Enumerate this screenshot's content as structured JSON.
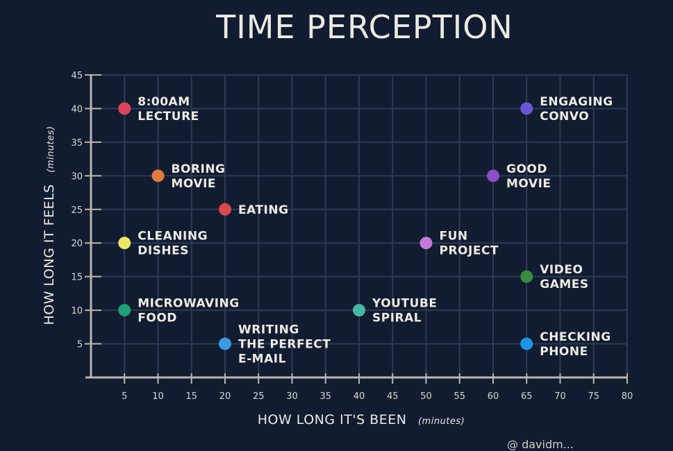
{
  "chart_data": {
    "type": "scatter",
    "title": "TIME PERCEPTION",
    "xlabel": "HOW LONG IT'S BEEN",
    "xunit": "(minutes)",
    "ylabel": "HOW LONG IT FEELS",
    "yunit": "(minutes)",
    "xlim": [
      0,
      80
    ],
    "ylim": [
      0,
      45
    ],
    "xticks": [
      5,
      10,
      15,
      20,
      25,
      30,
      35,
      40,
      45,
      50,
      55,
      60,
      65,
      70,
      75,
      80
    ],
    "yticks": [
      5,
      10,
      15,
      20,
      25,
      30,
      35,
      40,
      45
    ],
    "grid": true,
    "points": [
      {
        "label": [
          "8:00AM",
          "LECTURE"
        ],
        "x": 5,
        "y": 40,
        "color": "#d9455f"
      },
      {
        "label": [
          "BORING",
          "MOVIE"
        ],
        "x": 10,
        "y": 30,
        "color": "#e07a3f"
      },
      {
        "label": [
          "EATING"
        ],
        "x": 20,
        "y": 25,
        "color": "#d9484a"
      },
      {
        "label": [
          "CLEANING",
          "DISHES"
        ],
        "x": 5,
        "y": 20,
        "color": "#ece56a"
      },
      {
        "label": [
          "MICROWAVING",
          "FOOD"
        ],
        "x": 5,
        "y": 10,
        "color": "#1f9e78"
      },
      {
        "label": [
          "WRITING",
          "THE PERFECT",
          "E-MAIL"
        ],
        "x": 20,
        "y": 5,
        "color": "#3c9ae3"
      },
      {
        "label": [
          "YOUTUBE",
          "SPIRAL"
        ],
        "x": 40,
        "y": 10,
        "color": "#47b7a5"
      },
      {
        "label": [
          "FUN",
          "PROJECT"
        ],
        "x": 50,
        "y": 20,
        "color": "#c37ad6"
      },
      {
        "label": [
          "GOOD",
          "MOVIE"
        ],
        "x": 60,
        "y": 30,
        "color": "#8b4ecb"
      },
      {
        "label": [
          "ENGAGING",
          "CONVO"
        ],
        "x": 65,
        "y": 40,
        "color": "#6b55d6"
      },
      {
        "label": [
          "VIDEO",
          "GAMES"
        ],
        "x": 65,
        "y": 15,
        "color": "#3a8a3f"
      },
      {
        "label": [
          "CHECKING",
          "PHONE"
        ],
        "x": 65,
        "y": 5,
        "color": "#1d94e5"
      }
    ]
  },
  "footer": {
    "credit": "@ davidm..."
  },
  "colors": {
    "background": "#121c31",
    "grid": "#2d3a52",
    "axis": "#b9b6ad",
    "text": "#ecebe3"
  }
}
